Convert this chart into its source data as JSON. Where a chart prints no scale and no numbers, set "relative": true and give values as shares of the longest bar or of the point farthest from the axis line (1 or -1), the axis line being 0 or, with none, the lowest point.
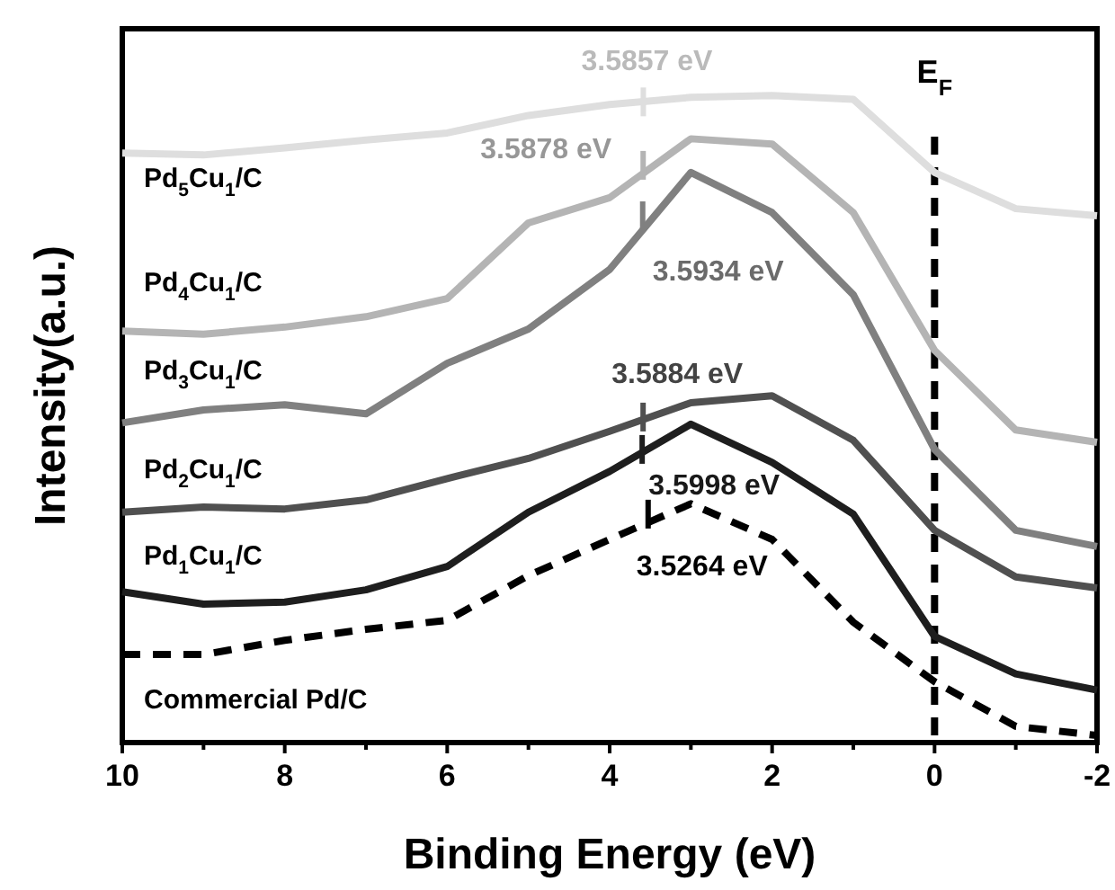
{
  "chart_data": {
    "type": "line",
    "xlabel": "Binding Energy (eV)",
    "ylabel": "Intensity(a.u.)",
    "relative": true,
    "tick_labels": "x",
    "legend": false,
    "grid": false,
    "marker": "none",
    "x": [
      10,
      9,
      8,
      7,
      6,
      5,
      4,
      3,
      2,
      1,
      0,
      -1,
      -2
    ],
    "xlim": [
      10,
      -2
    ],
    "xticks": [
      10,
      {
        "value": 9,
        "label": null
      },
      8,
      {
        "value": 7,
        "label": null
      },
      6,
      {
        "value": 5,
        "label": null
      },
      4,
      {
        "value": 3,
        "label": null
      },
      2,
      {
        "value": 1,
        "label": null
      },
      0,
      {
        "value": -1,
        "label": null
      },
      -2
    ],
    "series": [
      {
        "name": "Pd$_{5}$Cu$_{1}$/C",
        "color": "#dedede",
        "line_style": "solid",
        "values": [
          0.911,
          0.908,
          0.919,
          0.931,
          0.942,
          0.969,
          0.986,
          0.997,
          1.0,
          0.994,
          0.881,
          0.825,
          0.814
        ]
      },
      {
        "name": "Pd$_{4}$Cu$_{1}$/C",
        "color": "#b4b4b4",
        "line_style": "solid",
        "values": [
          0.636,
          0.631,
          0.642,
          0.658,
          0.686,
          0.803,
          0.842,
          0.933,
          0.925,
          0.819,
          0.606,
          0.483,
          0.464
        ]
      },
      {
        "name": "Pd$_{3}$Cu$_{1}$/C",
        "color": "#808080",
        "line_style": "solid",
        "values": [
          0.494,
          0.514,
          0.522,
          0.508,
          0.586,
          0.639,
          0.731,
          0.881,
          0.819,
          0.692,
          0.453,
          0.328,
          0.303
        ]
      },
      {
        "name": "Pd$_{2}$Cu$_{1}$/C",
        "color": "#505050",
        "line_style": "solid",
        "values": [
          0.356,
          0.364,
          0.361,
          0.375,
          0.408,
          0.439,
          0.481,
          0.525,
          0.536,
          0.467,
          0.328,
          0.256,
          0.239
        ]
      },
      {
        "name": "Pd$_{1}$Cu$_{1}$/C",
        "color": "#1e1e1e",
        "line_style": "solid",
        "values": [
          0.233,
          0.214,
          0.217,
          0.236,
          0.272,
          0.356,
          0.419,
          0.492,
          0.433,
          0.353,
          0.164,
          0.106,
          0.081
        ]
      },
      {
        "name": "Commercial Pd/C",
        "color": "#000000",
        "line_style": "dashed",
        "values": [
          0.136,
          0.136,
          0.158,
          0.175,
          0.189,
          0.258,
          0.314,
          0.369,
          0.314,
          0.186,
          0.094,
          0.025,
          0.011
        ]
      }
    ],
    "annotations": [
      {
        "text": "3.5857 eV",
        "x": 3.5857,
        "y": 0.99
      },
      {
        "text": "3.5878 eV",
        "x": 3.5878,
        "y": 0.892
      },
      {
        "text": "3.5934 eV",
        "x": 3.5934,
        "y": 0.814
      },
      {
        "text": "3.5884 eV",
        "x": 3.5884,
        "y": 0.503
      },
      {
        "text": "3.5998 eV",
        "x": 3.5998,
        "y": 0.453
      },
      {
        "text": "3.5264 eV",
        "x": 3.5264,
        "y": 0.353
      }
    ],
    "ref_lines": [
      {
        "axis": "x",
        "value": 0,
        "label": "E$_{F}$",
        "color": "#000000",
        "line_style": "dashed"
      }
    ]
  }
}
